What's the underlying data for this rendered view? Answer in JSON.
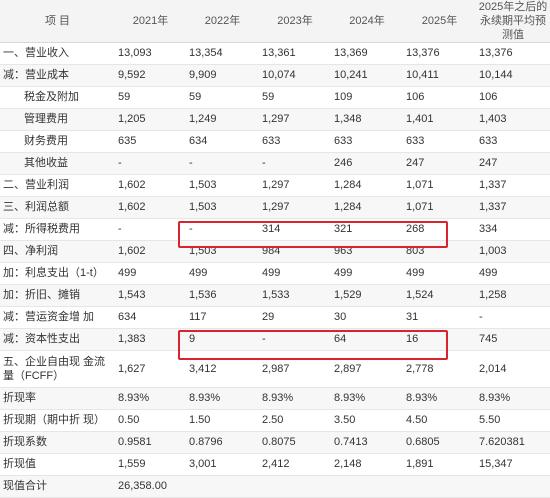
{
  "table": {
    "headers": [
      "项 目",
      "2021年",
      "2022年",
      "2023年",
      "2024年",
      "2025年",
      "2025年之后的永续期平均预测值"
    ],
    "rows": [
      {
        "label": "一、营业收入",
        "values": [
          "13,093",
          "13,354",
          "13,361",
          "13,369",
          "13,376",
          "13,376"
        ],
        "indent": false
      },
      {
        "label": "减：营业成本",
        "values": [
          "9,592",
          "9,909",
          "10,074",
          "10,241",
          "10,411",
          "10,144"
        ],
        "indent": false
      },
      {
        "label": "税金及附加",
        "values": [
          "59",
          "59",
          "59",
          "109",
          "106",
          "106"
        ],
        "indent": true
      },
      {
        "label": "管理费用",
        "values": [
          "1,205",
          "1,249",
          "1,297",
          "1,348",
          "1,401",
          "1,403"
        ],
        "indent": true
      },
      {
        "label": "财务费用",
        "values": [
          "635",
          "634",
          "633",
          "633",
          "633",
          "633"
        ],
        "indent": true
      },
      {
        "label": "其他收益",
        "values": [
          "-",
          "-",
          "-",
          "246",
          "247",
          "247"
        ],
        "indent": true
      },
      {
        "label": "二、营业利润",
        "values": [
          "1,602",
          "1,503",
          "1,297",
          "1,284",
          "1,071",
          "1,337"
        ],
        "indent": false
      },
      {
        "label": "三、利润总额",
        "values": [
          "1,602",
          "1,503",
          "1,297",
          "1,284",
          "1,071",
          "1,337"
        ],
        "indent": false
      },
      {
        "label": "减：所得税费用",
        "values": [
          "-",
          "-",
          "314",
          "321",
          "268",
          "334"
        ],
        "indent": false
      },
      {
        "label": "四、净利润",
        "values": [
          "1,602",
          "1,503",
          "984",
          "963",
          "803",
          "1,003"
        ],
        "indent": false
      },
      {
        "label": "加：利息支出（1-t）",
        "values": [
          "499",
          "499",
          "499",
          "499",
          "499",
          "499"
        ],
        "indent": false
      },
      {
        "label": "加：折旧、摊销",
        "values": [
          "1,543",
          "1,536",
          "1,533",
          "1,529",
          "1,524",
          "1,258"
        ],
        "indent": false
      },
      {
        "label": "减：营运资金增 加",
        "values": [
          "634",
          "117",
          "29",
          "30",
          "31",
          "-"
        ],
        "indent": false
      },
      {
        "label": "减：资本性支出",
        "values": [
          "1,383",
          "9",
          "-",
          "64",
          "16",
          "745"
        ],
        "indent": false
      },
      {
        "label": "五、企业自由现 金流量（FCFF）",
        "values": [
          "1,627",
          "3,412",
          "2,987",
          "2,897",
          "2,778",
          "2,014"
        ],
        "indent": false,
        "tall": true
      },
      {
        "label": "折现率",
        "values": [
          "8.93%",
          "8.93%",
          "8.93%",
          "8.93%",
          "8.93%",
          "8.93%"
        ],
        "indent": false
      },
      {
        "label": "折现期（期中折 现）",
        "values": [
          "0.50",
          "1.50",
          "2.50",
          "3.50",
          "4.50",
          "5.50"
        ],
        "indent": false
      },
      {
        "label": "折现系数",
        "values": [
          "0.9581",
          "0.8796",
          "0.8075",
          "0.7413",
          "0.6805",
          "7.620381"
        ],
        "indent": false
      },
      {
        "label": "折现值",
        "values": [
          "1,559",
          "3,001",
          "2,412",
          "2,148",
          "1,891",
          "15,347"
        ],
        "indent": false
      },
      {
        "label": "现值合计",
        "values": [
          "26,358.00",
          "",
          "",
          "",
          "",
          ""
        ],
        "indent": false
      }
    ]
  },
  "colors": {
    "highlight": "#d9232f",
    "header_bg": "#f4f4f4",
    "stripe": "#f7f7f7"
  }
}
